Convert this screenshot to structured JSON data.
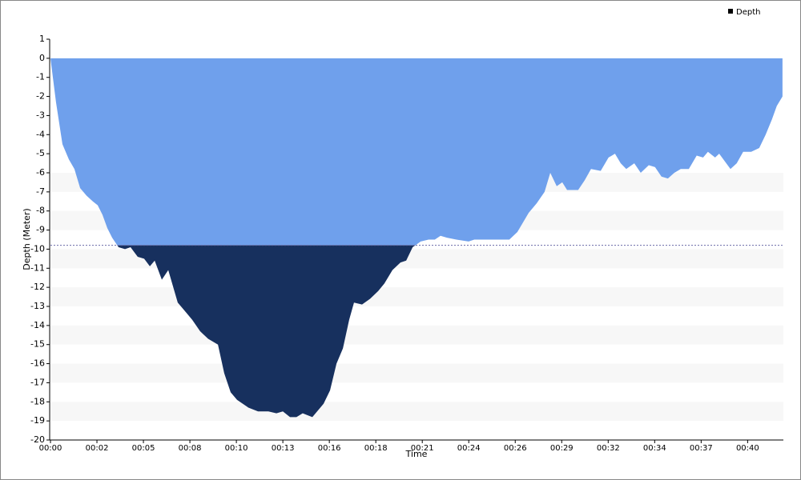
{
  "chart_data": {
    "type": "area",
    "xlabel": "Time",
    "ylabel": "Depth (Meter)",
    "threshold_line": -9.8,
    "legend_position": "top-right",
    "grid_bands": true,
    "series": [
      {
        "name": "Depth",
        "color": "#6fa0ec",
        "below_threshold_color": "#17305e",
        "x": [
          0,
          0.31,
          0.67,
          1.03,
          1.34,
          1.66,
          2.02,
          2.37,
          2.64,
          2.91,
          3.18,
          3.45,
          3.81,
          4.17,
          4.48,
          4.88,
          5.24,
          5.56,
          5.83,
          6.23,
          6.59,
          7.12,
          7.57,
          7.93,
          8.37,
          8.82,
          9.37,
          9.72,
          10.08,
          10.44,
          11.07,
          11.61,
          12.19,
          12.64,
          13.0,
          13.4,
          13.76,
          14.11,
          14.65,
          15.28,
          15.64,
          16.0,
          16.36,
          16.71,
          16.98,
          17.43,
          17.88,
          18.33,
          18.68,
          19.13,
          19.58,
          19.9,
          20.26,
          20.71,
          21.15,
          21.5,
          21.82,
          22.18,
          22.71,
          23.39,
          23.71,
          24.51,
          25.67,
          26.12,
          26.75,
          27.2,
          27.64,
          27.96,
          28.32,
          28.63,
          28.9,
          29.52,
          29.88,
          30.24,
          30.78,
          31.22,
          31.58,
          31.9,
          32.21,
          32.66,
          33.02,
          33.47,
          33.82,
          34.18,
          34.54,
          34.9,
          35.26,
          35.71,
          36.15,
          36.51,
          36.78,
          37.18,
          37.41,
          38.04,
          38.39,
          38.75,
          39.2,
          39.65,
          40.01,
          40.36,
          40.63,
          40.95
        ],
        "values": [
          0,
          -2.3,
          -4.5,
          -5.3,
          -5.8,
          -6.8,
          -7.2,
          -7.5,
          -7.7,
          -8.2,
          -8.9,
          -9.4,
          -9.9,
          -10,
          -9.9,
          -10.4,
          -10.5,
          -10.9,
          -10.6,
          -11.6,
          -11.1,
          -12.8,
          -13.3,
          -13.7,
          -14.3,
          -14.7,
          -15,
          -16.5,
          -17.5,
          -17.9,
          -18.3,
          -18.5,
          -18.5,
          -18.6,
          -18.5,
          -18.8,
          -18.8,
          -18.6,
          -18.8,
          -18.1,
          -17.4,
          -16,
          -15.2,
          -13.7,
          -12.8,
          -12.9,
          -12.6,
          -12.2,
          -11.8,
          -11.1,
          -10.7,
          -10.6,
          -9.9,
          -9.6,
          -9.5,
          -9.5,
          -9.3,
          -9.4,
          -9.5,
          -9.6,
          -9.5,
          -9.5,
          -9.5,
          -9.1,
          -8.1,
          -7.6,
          -7,
          -6,
          -6.7,
          -6.5,
          -6.9,
          -6.9,
          -6.4,
          -5.8,
          -5.9,
          -5.2,
          -5,
          -5.5,
          -5.8,
          -5.5,
          -6,
          -5.6,
          -5.7,
          -6.2,
          -6.3,
          -6,
          -5.8,
          -5.8,
          -5.1,
          -5.2,
          -4.9,
          -5.2,
          -5,
          -5.8,
          -5.5,
          -4.9,
          -4.9,
          -4.7,
          -4,
          -3.2,
          -2.5,
          -2
        ]
      }
    ],
    "xlim": [
      0,
      41
    ],
    "ylim": [
      -20,
      1
    ],
    "xticks": [
      {
        "value": 0,
        "label": "00:00"
      },
      {
        "value": 2.6,
        "label": "00:02"
      },
      {
        "value": 5.2,
        "label": "00:05"
      },
      {
        "value": 7.8,
        "label": "00:08"
      },
      {
        "value": 10.4,
        "label": "00:10"
      },
      {
        "value": 13,
        "label": "00:13"
      },
      {
        "value": 15.6,
        "label": "00:16"
      },
      {
        "value": 18.2,
        "label": "00:18"
      },
      {
        "value": 20.8,
        "label": "00:21"
      },
      {
        "value": 23.4,
        "label": "00:24"
      },
      {
        "value": 26,
        "label": "00:26"
      },
      {
        "value": 28.6,
        "label": "00:29"
      },
      {
        "value": 31.2,
        "label": "00:32"
      },
      {
        "value": 33.8,
        "label": "00:34"
      },
      {
        "value": 36.4,
        "label": "00:37"
      },
      {
        "value": 39,
        "label": "00:40"
      }
    ],
    "yticks": [
      1,
      0,
      -1,
      -2,
      -3,
      -4,
      -5,
      -6,
      -7,
      -8,
      -9,
      -10,
      -11,
      -12,
      -13,
      -14,
      -15,
      -16,
      -17,
      -18,
      -19,
      -20
    ]
  }
}
